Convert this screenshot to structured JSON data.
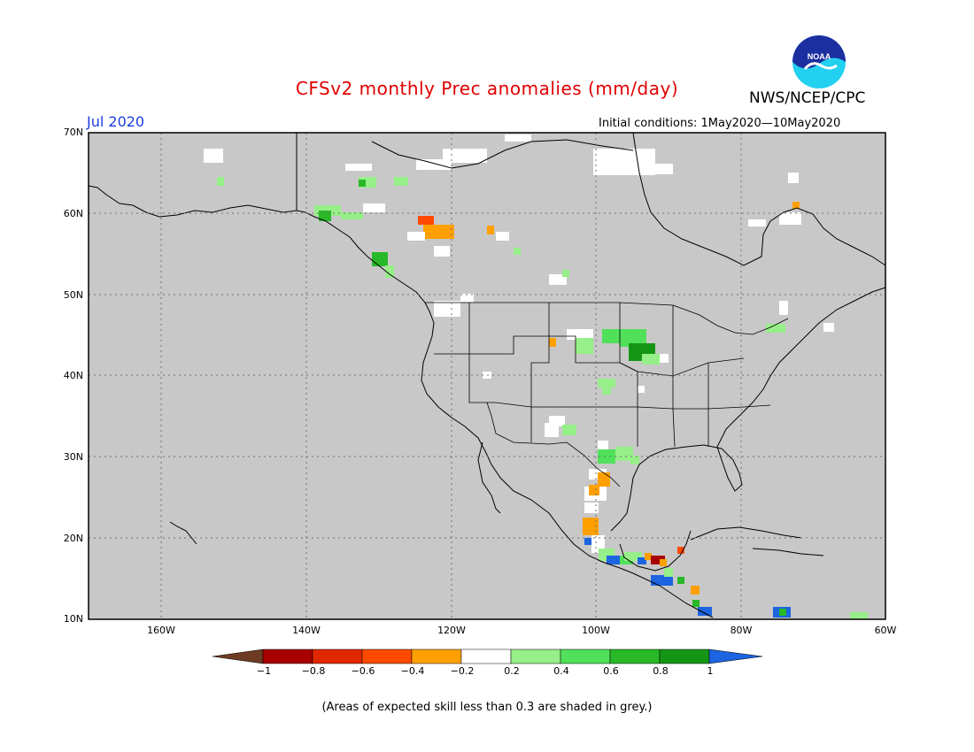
{
  "header": {
    "title": "CFSv2 monthly Prec anomalies (mm/day)",
    "org": "NWS/NCEP/CPC",
    "logo_text": "NOAA",
    "month": "Jul 2020",
    "initial_conditions": "Initial conditions: 1May2020—10May2020"
  },
  "map": {
    "projection": "lat-lon",
    "lon_range": [
      -170,
      -60
    ],
    "lat_range": [
      10,
      70
    ],
    "background_color": "#c8c8c8",
    "grid": "dotted",
    "lat_labels": [
      "70N",
      "60N",
      "50N",
      "40N",
      "30N",
      "20N",
      "10N"
    ],
    "lon_labels": [
      "160W",
      "140W",
      "120W",
      "100W",
      "80W",
      "60W"
    ]
  },
  "colorbar": {
    "labels": [
      "−1",
      "−0.8",
      "−0.6",
      "−0.4",
      "−0.2",
      "0.2",
      "0.4",
      "0.6",
      "0.8",
      "1"
    ],
    "colors": [
      "#6e3b23",
      "#a80000",
      "#e02800",
      "#ff4a00",
      "#ffa000",
      "#ffffff",
      "#96ef88",
      "#50e05a",
      "#28b828",
      "#149614",
      "#1c64e0"
    ]
  },
  "footnote": "(Areas of expected skill less than 0.3 are shaded in grey.)"
}
